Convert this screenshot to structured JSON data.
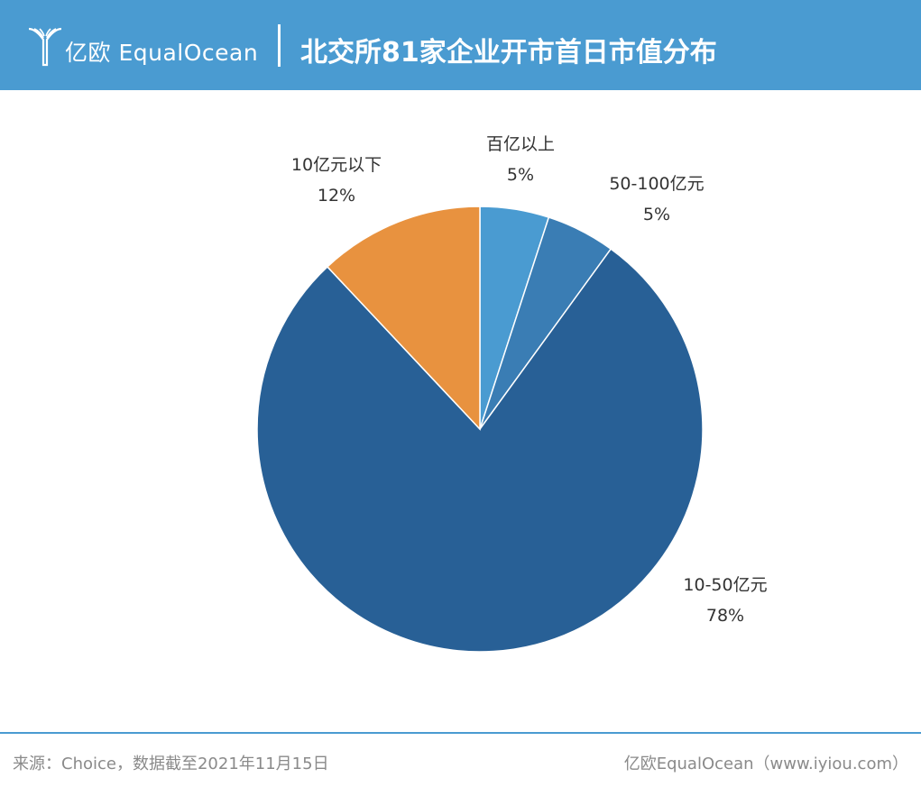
{
  "header": {
    "brand": "亿欧 EqualOcean",
    "title": "北交所81家企业开市首日市值分布"
  },
  "colors": {
    "header_bg": "#4a9bd1",
    "slice_100plus": "#4a9bd1",
    "slice_50_100": "#3a7db4",
    "slice_10_50": "#286096",
    "slice_under10": "#e8923f"
  },
  "chart_data": {
    "type": "pie",
    "title": "北交所81家企业开市首日市值分布",
    "start_angle_deg": 0,
    "direction": "clockwise",
    "slices": [
      {
        "label": "百亿以上",
        "value": 5,
        "pct_label": "5%",
        "color": "#4a9bd1"
      },
      {
        "label": "50-100亿元",
        "value": 5,
        "pct_label": "5%",
        "color": "#3a7db4"
      },
      {
        "label": "10-50亿元",
        "value": 78,
        "pct_label": "78%",
        "color": "#286096"
      },
      {
        "label": "10亿元以下",
        "value": 12,
        "pct_label": "12%",
        "color": "#e8923f"
      }
    ]
  },
  "footer": {
    "source": "来源：Choice，数据截至2021年11月15日",
    "credit": "亿欧EqualOcean（www.iyiou.com）"
  }
}
